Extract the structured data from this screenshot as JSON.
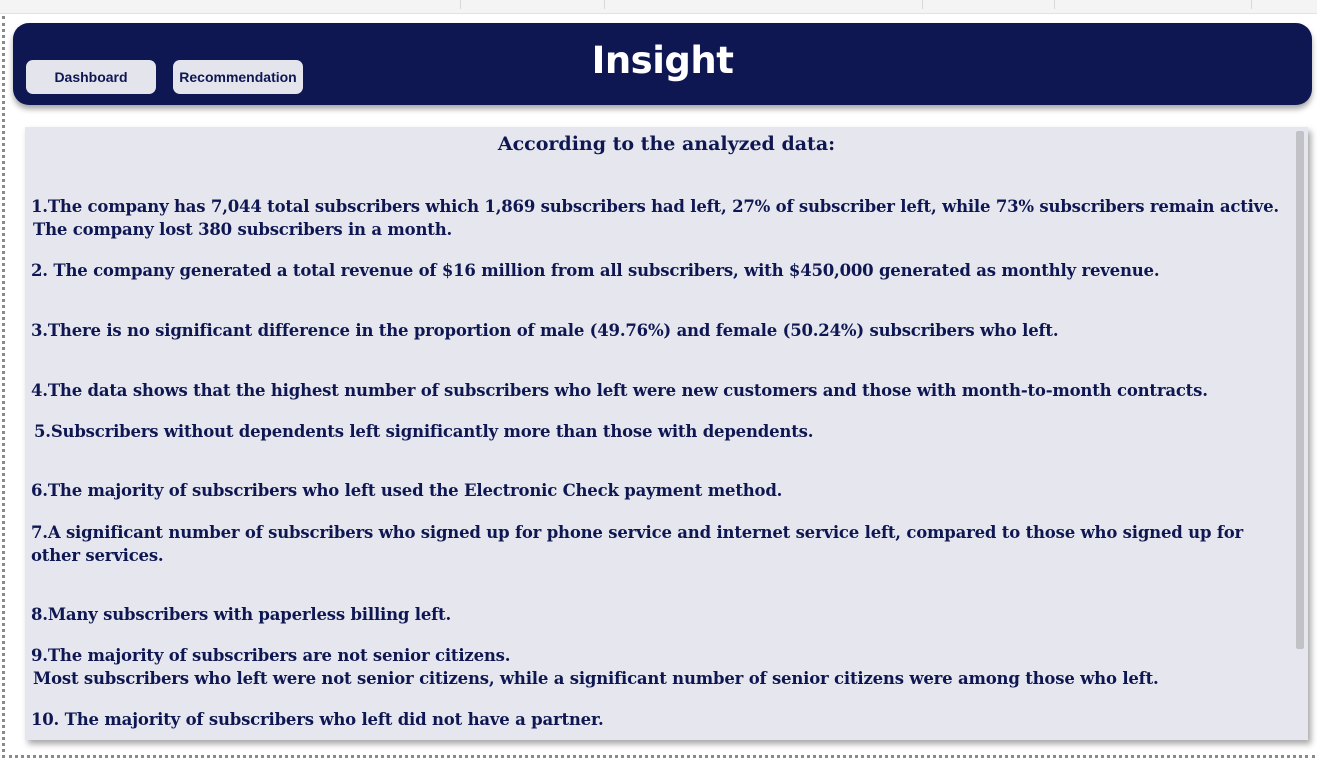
{
  "header": {
    "title": "Insight",
    "nav": [
      {
        "label": "Dashboard"
      },
      {
        "label": "Recommendation"
      }
    ]
  },
  "panel": {
    "heading": "According to the analyzed data:",
    "insights": [
      {
        "lines": [
          "1.The company has 7,044 total subscribers which 1,869 subscribers had left, 27% of  subscriber left, while 73% subscribers remain active.",
          " The company lost 380 subscribers in a month."
        ]
      },
      {
        "lines": [
          "2. The company generated a total revenue of  $16 million from all subscribers, with  $450,000 generated as monthly revenue."
        ]
      },
      {
        "lines": [
          "3.There is no significant difference in the proportion of male (49.76%) and female (50.24%) subscribers who left."
        ]
      },
      {
        "lines": [
          "4.The data shows that the highest number of subscribers who left were new customers and those with month-to-month contracts."
        ]
      },
      {
        "lines": [
          " 5.Subscribers without dependents left significantly more than those with dependents."
        ]
      },
      {
        "lines": [
          "6.The majority of subscribers who left used the Electronic Check payment method."
        ]
      },
      {
        "lines": [
          "7.A significant number of subscribers who signed up for phone service and internet service left, compared to those who signed up for other services."
        ]
      },
      {
        "lines": [
          "8.Many subscribers with paperless billing left."
        ]
      },
      {
        "lines": [
          "9.The majority of subscribers are not senior citizens.",
          " Most subscribers who left were not senior citizens, while a significant number of senior citizens were among those who left."
        ]
      },
      {
        "lines": [
          "10. The majority of subscribers who left did not have a partner."
        ]
      }
    ]
  },
  "colors": {
    "header_bg": "#0e1752",
    "text": "#0e1752",
    "panel_bg": "#e6e7ee",
    "button_bg": "#e3e4ec"
  }
}
